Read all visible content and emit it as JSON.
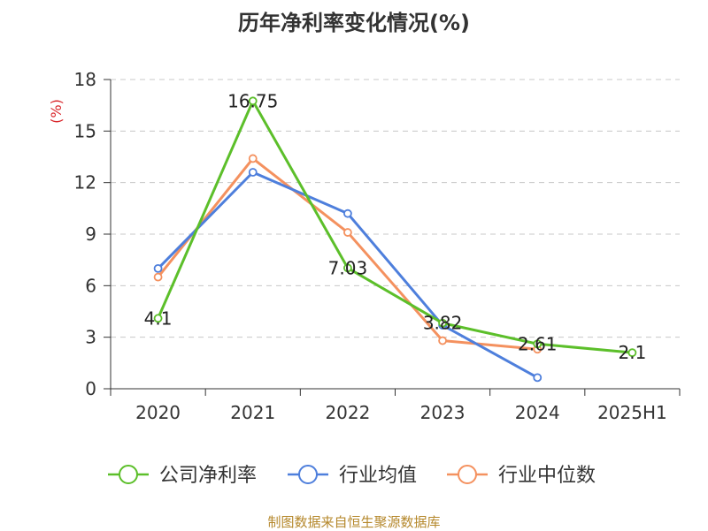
{
  "title": "历年净利率变化情况(%)",
  "source": "制图数据来自恒生聚源数据库",
  "chart_data": {
    "type": "line",
    "title": "历年净利率变化情况(%)",
    "ylabel": "(%)",
    "xlabel": "",
    "categories": [
      "2020",
      "2021",
      "2022",
      "2023",
      "2024",
      "2025H1"
    ],
    "ylim": [
      0,
      18
    ],
    "yticks": [
      0,
      3,
      6,
      9,
      12,
      15,
      18
    ],
    "grid": "horizontal-dashed",
    "legend_position": "bottom",
    "series": [
      {
        "name": "公司净利率",
        "color": "#5cbf2a",
        "values": [
          4.1,
          16.75,
          7.03,
          3.82,
          2.61,
          2.1
        ],
        "labels": [
          "4.1",
          "16.75",
          "7.03",
          "3.82",
          "2.61",
          "2.1"
        ]
      },
      {
        "name": "行业均值",
        "color": "#4e7fdc",
        "values": [
          7.0,
          12.6,
          10.2,
          3.7,
          0.65,
          null
        ]
      },
      {
        "name": "行业中位数",
        "color": "#f4915f",
        "values": [
          6.5,
          13.4,
          9.1,
          2.8,
          2.3,
          null
        ]
      }
    ]
  }
}
